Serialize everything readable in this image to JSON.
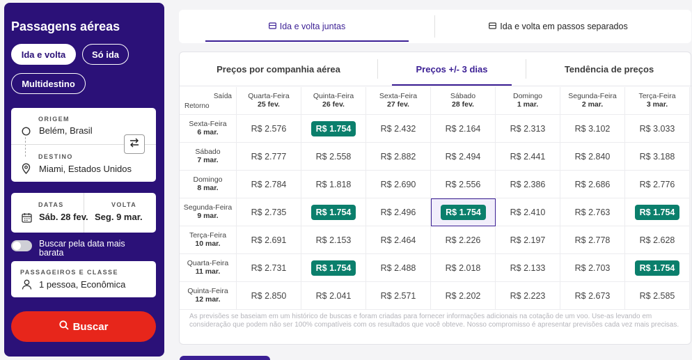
{
  "sidebar": {
    "title": "Passagens aéreas",
    "trip_types": [
      "Ida e volta",
      "Só ida",
      "Multidestino"
    ],
    "origin": {
      "label": "ORIGEM",
      "value": "Belém, Brasil"
    },
    "destination": {
      "label": "DESTINO",
      "value": "Miami, Estados Unidos"
    },
    "dates": {
      "label": "DATAS",
      "value": "Sáb. 28 fev."
    },
    "return": {
      "label": "VOLTA",
      "value": "Seg. 9 mar."
    },
    "cheapest_toggle_label": "Buscar pela data mais barata",
    "passengers": {
      "label": "PASSAGEIROS E CLASSE",
      "value": "1 pessoa, Econômica"
    },
    "search_label": "Buscar"
  },
  "top_tabs": [
    "Ida e volta juntas",
    "Ida e volta em passos separados"
  ],
  "sub_tabs": [
    "Preços por companhia aérea",
    "Preços +/- 3 dias",
    "Tendência de preços"
  ],
  "matrix": {
    "corner_departure": "Saída",
    "corner_return": "Retorno",
    "columns": [
      {
        "day": "Quarta-Feira",
        "date": "25 fev."
      },
      {
        "day": "Quinta-Feira",
        "date": "26 fev."
      },
      {
        "day": "Sexta-Feira",
        "date": "27 fev."
      },
      {
        "day": "Sábado",
        "date": "28 fev."
      },
      {
        "day": "Domingo",
        "date": "1 mar."
      },
      {
        "day": "Segunda-Feira",
        "date": "2 mar."
      },
      {
        "day": "Terça-Feira",
        "date": "3 mar."
      }
    ],
    "rows": [
      {
        "day": "Sexta-Feira",
        "date": "6 mar.",
        "prices": [
          "R$ 2.576",
          "R$ 1.754",
          "R$ 2.432",
          "R$ 2.164",
          "R$ 2.313",
          "R$ 3.102",
          "R$ 3.033"
        ],
        "best": [
          1
        ]
      },
      {
        "day": "Sábado",
        "date": "7 mar.",
        "prices": [
          "R$ 2.777",
          "R$ 2.558",
          "R$ 2.882",
          "R$ 2.494",
          "R$ 2.441",
          "R$ 2.840",
          "R$ 3.188"
        ],
        "best": []
      },
      {
        "day": "Domingo",
        "date": "8 mar.",
        "prices": [
          "R$ 2.784",
          "R$ 1.818",
          "R$ 2.690",
          "R$ 2.556",
          "R$ 2.386",
          "R$ 2.686",
          "R$ 2.776"
        ],
        "best": []
      },
      {
        "day": "Segunda-Feira",
        "date": "9 mar.",
        "prices": [
          "R$ 2.735",
          "R$ 1.754",
          "R$ 2.496",
          "R$ 1.754",
          "R$ 2.410",
          "R$ 2.763",
          "R$ 1.754"
        ],
        "best": [
          1,
          3,
          6
        ]
      },
      {
        "day": "Terça-Feira",
        "date": "10 mar.",
        "prices": [
          "R$ 2.691",
          "R$ 2.153",
          "R$ 2.464",
          "R$ 2.226",
          "R$ 2.197",
          "R$ 2.778",
          "R$ 2.628"
        ],
        "best": []
      },
      {
        "day": "Quarta-Feira",
        "date": "11 mar.",
        "prices": [
          "R$ 2.731",
          "R$ 1.754",
          "R$ 2.488",
          "R$ 2.018",
          "R$ 2.133",
          "R$ 2.703",
          "R$ 1.754"
        ],
        "best": [
          1,
          6
        ]
      },
      {
        "day": "Quinta-Feira",
        "date": "12 mar.",
        "prices": [
          "R$ 2.850",
          "R$ 2.041",
          "R$ 2.571",
          "R$ 2.202",
          "R$ 2.223",
          "R$ 2.673",
          "R$ 2.585"
        ],
        "best": []
      }
    ],
    "selected": {
      "row": 3,
      "col": 3
    }
  },
  "disclaimer": "As previsões se baseiam em um histórico de buscas e foram criadas para fornecer informações adicionais na cotação de um voo. Use-as levando em consideração que podem não ser 100% compatíveis com os resultados que você obteve. Nosso compromisso é apresentar previsões cada vez mais precisas.",
  "colors": {
    "sidebar": "#2b1178",
    "accent": "#3b1f94",
    "search": "#e7261b",
    "best_price": "#0b7f6c"
  }
}
